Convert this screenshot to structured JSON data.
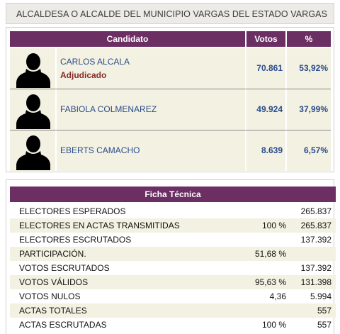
{
  "header": {
    "title": "ALCALDESA O ALCALDE DEL MUNICIPIO VARGAS DEL ESTADO VARGAS"
  },
  "results": {
    "columns": {
      "candidate": "Candidato",
      "votes": "Votos",
      "percent": "%"
    },
    "rows": [
      {
        "name": "CARLOS ALCALA",
        "status": "Adjudicado",
        "votes": "70.861",
        "percent": "53,92%"
      },
      {
        "name": "FABIOLA COLMENAREZ",
        "status": "",
        "votes": "49.924",
        "percent": "37,99%"
      },
      {
        "name": "EBERTS CAMACHO",
        "status": "",
        "votes": "8.639",
        "percent": "6,57%"
      }
    ]
  },
  "ficha": {
    "title": "Ficha Técnica",
    "rows": [
      {
        "label": "ELECTORES ESPERADOS",
        "pct": "",
        "value": "265.837"
      },
      {
        "label": "ELECTORES EN ACTAS TRANSMITIDAS",
        "pct": "100 %",
        "value": "265.837"
      },
      {
        "label": "ELECTORES ESCRUTADOS",
        "pct": "",
        "value": "137.392"
      },
      {
        "label": "PARTICIPACIÓN.",
        "pct": "51,68 %",
        "value": ""
      },
      {
        "label": "VOTOS ESCRUTADOS",
        "pct": "",
        "value": "137.392"
      },
      {
        "label": "VOTOS VÁLIDOS",
        "pct": "95,63 %",
        "value": "131.398"
      },
      {
        "label": "VOTOS NULOS",
        "pct": "4,36",
        "value": "5.994"
      },
      {
        "label": "ACTAS TOTALES",
        "pct": "",
        "value": "557"
      },
      {
        "label": "ACTAS ESCRUTADAS",
        "pct": "100 %",
        "value": "557"
      }
    ]
  },
  "colors": {
    "header_bg": "#6b2f63",
    "row_bg": "#f3f1e1",
    "name_text": "#2a4c8c",
    "status_text": "#8a2a2a"
  },
  "icons": {
    "candidate_photo": "person-silhouette-icon"
  }
}
